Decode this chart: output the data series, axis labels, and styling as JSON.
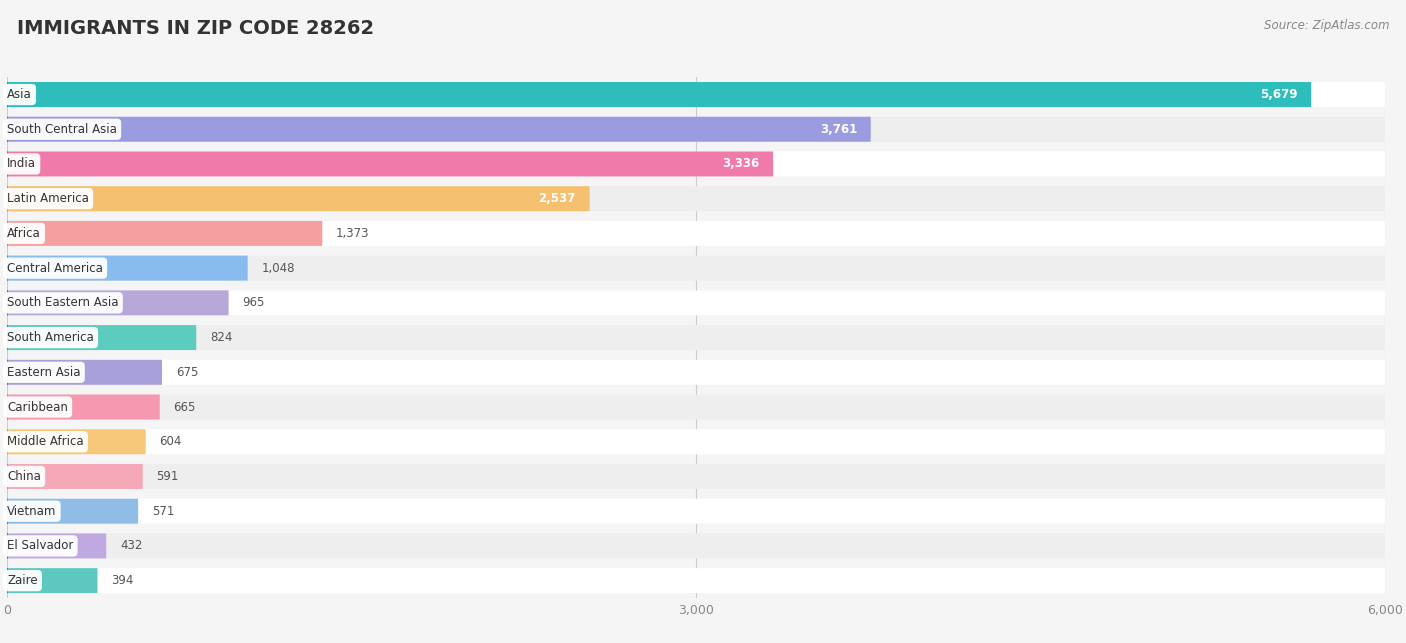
{
  "title": "IMMIGRANTS IN ZIP CODE 28262",
  "source_text": "Source: ZipAtlas.com",
  "categories": [
    "Asia",
    "South Central Asia",
    "India",
    "Latin America",
    "Africa",
    "Central America",
    "South Eastern Asia",
    "South America",
    "Eastern Asia",
    "Caribbean",
    "Middle Africa",
    "China",
    "Vietnam",
    "El Salvador",
    "Zaire"
  ],
  "values": [
    5679,
    3761,
    3336,
    2537,
    1373,
    1048,
    965,
    824,
    675,
    665,
    604,
    591,
    571,
    432,
    394
  ],
  "bar_colors": [
    "#2dbdbb",
    "#9b9be0",
    "#f07aaa",
    "#f5c070",
    "#f5a0a0",
    "#88bbee",
    "#b8a8d8",
    "#5cccbf",
    "#a8a0d8",
    "#f598b0",
    "#f8c87a",
    "#f5a8b8",
    "#90bce8",
    "#c0a8e0",
    "#5cc8c0"
  ],
  "dot_colors": [
    "#1a9898",
    "#7070cc",
    "#e05080",
    "#e09030",
    "#e07070",
    "#5090cc",
    "#806098",
    "#309888",
    "#806898",
    "#e07090",
    "#e09838",
    "#e07888",
    "#5088c0",
    "#8060b0",
    "#309888"
  ],
  "xlim": [
    0,
    6000
  ],
  "xticks": [
    0,
    3000,
    6000
  ],
  "title_fontsize": 14,
  "bar_height": 0.72,
  "background_color": "#f5f5f5",
  "row_bg_light": "#ffffff",
  "row_bg_dark": "#eeeeee",
  "value_inside_color": "#ffffff",
  "value_outside_color": "#555555",
  "label_color": "#333333",
  "inside_threshold": 2537
}
